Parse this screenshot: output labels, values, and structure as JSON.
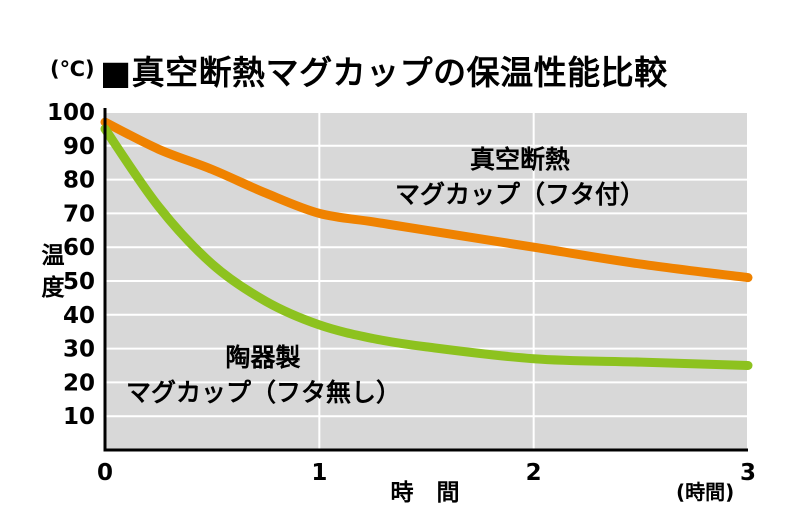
{
  "title": {
    "unit_label": "(℃)",
    "text": "■真空断熱マグカップの保温性能比較"
  },
  "axes": {
    "y_label": "温度",
    "x_label": "時　間",
    "x_unit": "(時間)"
  },
  "annotations": {
    "vacuum": {
      "line1": "真空断熱",
      "line2": "マグカップ（フタ付）"
    },
    "ceramic": {
      "line1": "陶器製",
      "line2": "マグカップ（フタ無し）"
    }
  },
  "colors": {
    "plot_bg": "#d8d8d8",
    "grid": "#ffffff",
    "axis": "#000000",
    "orange": "#ef8200",
    "green": "#8dc21f"
  },
  "chart_data": {
    "type": "line",
    "title": "真空断熱マグカップの保温性能比較",
    "xlabel": "時間",
    "ylabel": "温度",
    "x_unit_label": "時間",
    "y_unit_label": "℃",
    "xlim": [
      0,
      3
    ],
    "ylim": [
      0,
      100
    ],
    "x_ticks": [
      0,
      1,
      2,
      3
    ],
    "y_ticks": [
      100,
      90,
      80,
      70,
      60,
      50,
      40,
      30,
      20,
      10
    ],
    "grid": true,
    "legend_position": "inline-annotations",
    "x": [
      0,
      0.25,
      0.5,
      0.75,
      1,
      1.25,
      1.5,
      2,
      2.5,
      3
    ],
    "series": [
      {
        "name": "真空断熱マグカップ（フタ付）",
        "color": "#ef8200",
        "values": [
          97,
          89,
          83,
          76,
          70,
          67.5,
          65,
          60,
          55,
          51
        ]
      },
      {
        "name": "陶器製マグカップ（フタ無し）",
        "color": "#8dc21f",
        "values": [
          95,
          72,
          55,
          44,
          37,
          33,
          30.5,
          27,
          26,
          25
        ]
      }
    ]
  }
}
